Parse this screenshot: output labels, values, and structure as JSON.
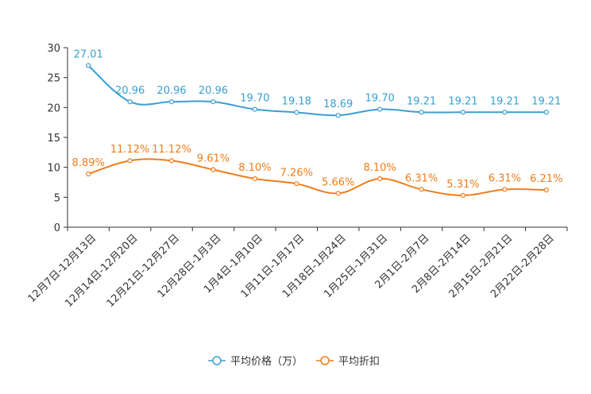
{
  "chart_data": {
    "type": "line",
    "categories": [
      "12月7日-12月13日",
      "12月14日-12月20日",
      "12月21日-12月27日",
      "12月28日-1月3日",
      "1月4日-1月10日",
      "1月11日-1月17日",
      "1月18日-1月24日",
      "1月25日-1月31日",
      "2月1日-2月7日",
      "2月8日-2月14日",
      "2月15日-2月21日",
      "2月22日-2月28日"
    ],
    "ylim": [
      0,
      30
    ],
    "yticks": [
      0,
      5,
      10,
      15,
      20,
      25,
      30
    ],
    "legend_position": "bottom",
    "series": [
      {
        "name": "平均价格（万）",
        "color": "#3a9fd0",
        "values": [
          27.01,
          20.96,
          20.96,
          20.96,
          19.7,
          19.18,
          18.69,
          19.7,
          19.21,
          19.21,
          19.21,
          19.21
        ],
        "labels": [
          "27.01",
          "20.96",
          "20.96",
          "20.96",
          "19.70",
          "19.18",
          "18.69",
          "19.70",
          "19.21",
          "19.21",
          "19.21",
          "19.21"
        ]
      },
      {
        "name": "平均折扣",
        "color": "#f07d1a",
        "values": [
          8.89,
          11.12,
          11.12,
          9.61,
          8.1,
          7.26,
          5.66,
          8.1,
          6.31,
          5.31,
          6.31,
          6.21
        ],
        "labels": [
          "8.89%",
          "11.12%",
          "11.12%",
          "9.61%",
          "8.10%",
          "7.26%",
          "5.66%",
          "8.10%",
          "6.31%",
          "5.31%",
          "6.31%",
          "6.21%"
        ]
      }
    ]
  }
}
